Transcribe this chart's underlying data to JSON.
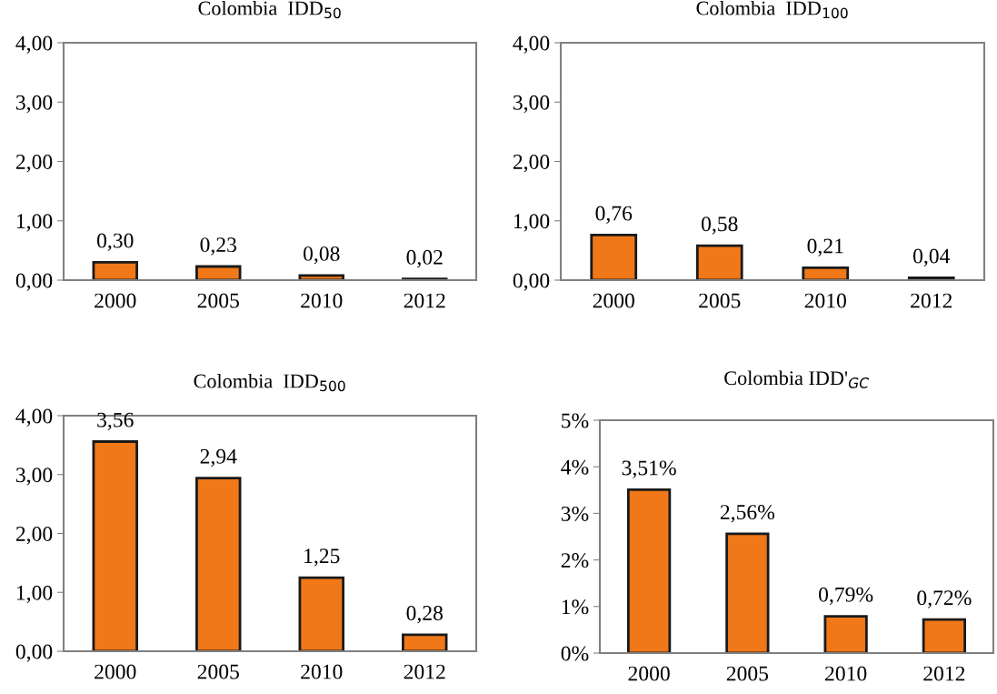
{
  "chart_data": [
    {
      "type": "bar",
      "title": "Colombia  IDD$_{50}$",
      "categories": [
        "2000",
        "2005",
        "2010",
        "2012"
      ],
      "values": [
        0.3,
        0.23,
        0.08,
        0.02
      ],
      "value_labels": [
        "0,30",
        "0,23",
        "0,08",
        "0,02"
      ],
      "color": "#f07818",
      "ylim": [
        0,
        4
      ],
      "yticks": [
        {
          "value": 0,
          "label": "0,00"
        },
        {
          "value": 1,
          "label": "1,00"
        },
        {
          "value": 2,
          "label": "2,00"
        },
        {
          "value": 3,
          "label": "3,00"
        },
        {
          "value": 4,
          "label": "4,00"
        }
      ],
      "grid": false
    },
    {
      "type": "bar",
      "title": "Colombia  IDD$_{100}$",
      "categories": [
        "2000",
        "2005",
        "2010",
        "2012"
      ],
      "values": [
        0.76,
        0.58,
        0.21,
        0.04
      ],
      "value_labels": [
        "0,76",
        "0,58",
        "0,21",
        "0,04"
      ],
      "color": "#f07818",
      "ylim": [
        0,
        4
      ],
      "yticks": [
        {
          "value": 0,
          "label": "0,00"
        },
        {
          "value": 1,
          "label": "1,00"
        },
        {
          "value": 2,
          "label": "2,00"
        },
        {
          "value": 3,
          "label": "3,00"
        },
        {
          "value": 4,
          "label": "4,00"
        }
      ],
      "grid": false
    },
    {
      "type": "bar",
      "title": "Colombia  IDD$_{500}$",
      "categories": [
        "2000",
        "2005",
        "2010",
        "2012"
      ],
      "values": [
        3.56,
        2.94,
        1.25,
        0.28
      ],
      "value_labels": [
        "3,56",
        "2,94",
        "1,25",
        "0,28"
      ],
      "color": "#f07818",
      "ylim": [
        0,
        4
      ],
      "yticks": [
        {
          "value": 0,
          "label": "0,00"
        },
        {
          "value": 1,
          "label": "1,00"
        },
        {
          "value": 2,
          "label": "2,00"
        },
        {
          "value": 3,
          "label": "3,00"
        },
        {
          "value": 4,
          "label": "4,00"
        }
      ],
      "grid": false
    },
    {
      "type": "bar",
      "title": "Colombia IDD'$_{GC}$",
      "categories": [
        "2000",
        "2005",
        "2010",
        "2012"
      ],
      "values": [
        3.51,
        2.56,
        0.79,
        0.72
      ],
      "value_labels": [
        "3,51%",
        "2,56%",
        "0,79%",
        "0,72%"
      ],
      "color": "#f07818",
      "ylim": [
        0,
        5
      ],
      "yticks": [
        {
          "value": 0,
          "label": "0%"
        },
        {
          "value": 1,
          "label": "1%"
        },
        {
          "value": 2,
          "label": "2%"
        },
        {
          "value": 3,
          "label": "3%"
        },
        {
          "value": 4,
          "label": "4%"
        },
        {
          "value": 5,
          "label": "5%"
        }
      ],
      "grid": false
    }
  ]
}
